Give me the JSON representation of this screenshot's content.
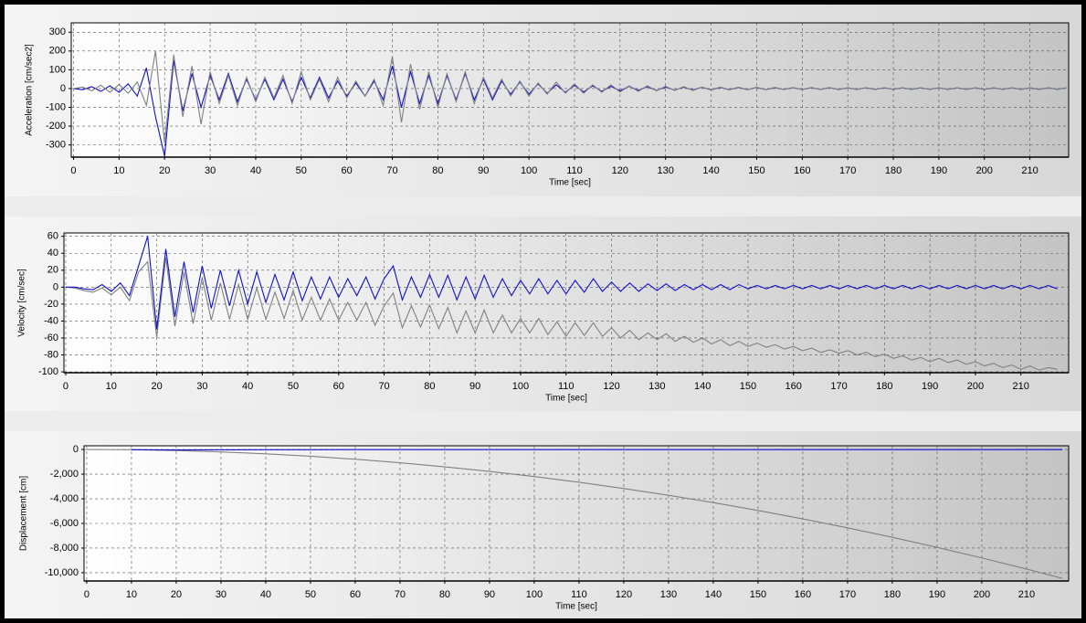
{
  "chart_data": [
    {
      "type": "line",
      "y_label": "Acceleration [cm/sec2]",
      "x_label": "Time [sec]",
      "grid": true,
      "xlim": [
        -0.5,
        218.5
      ],
      "ylim": [
        -365,
        350
      ],
      "xticks": [
        0,
        10,
        20,
        30,
        40,
        50,
        60,
        70,
        80,
        90,
        100,
        110,
        120,
        130,
        140,
        150,
        160,
        170,
        180,
        190,
        200,
        210
      ],
      "yticks": [
        300,
        200,
        100,
        0,
        -100,
        -200,
        -300
      ],
      "x": [
        0,
        2,
        4,
        6,
        8,
        10,
        12,
        14,
        16,
        18,
        20,
        22,
        24,
        26,
        28,
        30,
        32,
        34,
        36,
        38,
        40,
        42,
        44,
        46,
        48,
        50,
        52,
        54,
        56,
        58,
        60,
        62,
        64,
        66,
        68,
        70,
        72,
        74,
        76,
        78,
        80,
        82,
        84,
        86,
        88,
        90,
        92,
        94,
        96,
        98,
        100,
        102,
        104,
        106,
        108,
        110,
        112,
        114,
        116,
        118,
        120,
        122,
        124,
        126,
        128,
        130,
        132,
        134,
        136,
        138,
        140,
        142,
        144,
        146,
        148,
        150,
        152,
        154,
        156,
        158,
        160,
        162,
        164,
        166,
        168,
        170,
        172,
        174,
        176,
        178,
        180,
        182,
        184,
        186,
        188,
        190,
        192,
        194,
        196,
        198,
        200,
        202,
        204,
        206,
        208,
        210,
        212,
        214,
        216,
        218
      ],
      "series": [
        {
          "color": "#1010c8",
          "values": [
            0,
            -6,
            10,
            -15,
            15,
            -20,
            25,
            -40,
            110,
            -150,
            -360,
            150,
            -120,
            80,
            -100,
            70,
            -60,
            80,
            -70,
            50,
            -60,
            50,
            -60,
            50,
            -70,
            60,
            -50,
            60,
            -50,
            40,
            -40,
            30,
            -40,
            40,
            -60,
            120,
            -100,
            90,
            -80,
            70,
            -80,
            70,
            -60,
            80,
            -60,
            50,
            -60,
            40,
            -30,
            35,
            -30,
            25,
            -25,
            20,
            -20,
            18,
            -18,
            15,
            -15,
            12,
            -12,
            12,
            -10,
            10,
            -10,
            8,
            -8,
            7,
            -7,
            7,
            -7,
            6,
            -6,
            6,
            -6,
            6,
            -6,
            5,
            -5,
            5,
            -5,
            5,
            -5,
            5,
            -5,
            4,
            -4,
            4,
            -4,
            4,
            -4,
            4,
            -4,
            4,
            -4,
            4,
            -4,
            4,
            -4,
            4,
            -4,
            4,
            -4,
            4,
            -4,
            4,
            -4,
            4,
            -4,
            4
          ]
        },
        {
          "color": "#808080",
          "values": [
            0,
            8,
            -12,
            18,
            -20,
            22,
            -25,
            35,
            -90,
            200,
            -290,
            180,
            -150,
            120,
            -190,
            90,
            -80,
            70,
            -90,
            60,
            -70,
            60,
            -50,
            70,
            -80,
            90,
            -60,
            50,
            -70,
            60,
            -50,
            40,
            -40,
            50,
            -90,
            170,
            -180,
            130,
            -110,
            90,
            -100,
            80,
            -70,
            90,
            -80,
            60,
            -50,
            50,
            -40,
            40,
            -40,
            30,
            -30,
            35,
            -25,
            25,
            -25,
            20,
            -20,
            20,
            -18,
            15,
            -15,
            15,
            -12,
            12,
            -10,
            10,
            -10,
            8,
            -8,
            8,
            -7,
            7,
            -6,
            6,
            -6,
            6,
            -5,
            5,
            -5,
            5,
            -5,
            5,
            -4,
            4,
            -4,
            4,
            -4,
            4,
            -4,
            4,
            -3,
            3,
            -3,
            3,
            -3,
            3,
            -3,
            3,
            -3,
            3,
            -3,
            3,
            -3,
            3,
            -3,
            3,
            -3,
            3
          ]
        }
      ]
    },
    {
      "type": "line",
      "y_label": "Velocity [cm/sec]",
      "x_label": "Time [sec]",
      "grid": true,
      "xlim": [
        -0.4,
        220.5
      ],
      "ylim": [
        -101,
        64
      ],
      "xticks": [
        0,
        10,
        20,
        30,
        40,
        50,
        60,
        70,
        80,
        90,
        100,
        110,
        120,
        130,
        140,
        150,
        160,
        170,
        180,
        190,
        200,
        210
      ],
      "yticks": [
        60,
        40,
        20,
        0,
        -20,
        -40,
        -60,
        -80,
        -100
      ],
      "x": [
        0,
        2,
        4,
        6,
        8,
        10,
        12,
        14,
        16,
        18,
        20,
        22,
        24,
        26,
        28,
        30,
        32,
        34,
        36,
        38,
        40,
        42,
        44,
        46,
        48,
        50,
        52,
        54,
        56,
        58,
        60,
        62,
        64,
        66,
        68,
        70,
        72,
        74,
        76,
        78,
        80,
        82,
        84,
        86,
        88,
        90,
        92,
        94,
        96,
        98,
        100,
        102,
        104,
        106,
        108,
        110,
        112,
        114,
        116,
        118,
        120,
        122,
        124,
        126,
        128,
        130,
        132,
        134,
        136,
        138,
        140,
        142,
        144,
        146,
        148,
        150,
        152,
        154,
        156,
        158,
        160,
        162,
        164,
        166,
        168,
        170,
        172,
        174,
        176,
        178,
        180,
        182,
        184,
        186,
        188,
        190,
        192,
        194,
        196,
        198,
        200,
        202,
        204,
        206,
        208,
        210,
        212,
        214,
        216,
        218
      ],
      "series": [
        {
          "color": "#808080",
          "values": [
            0,
            -1,
            -4,
            -6,
            -1,
            -9,
            0,
            -16,
            18,
            30,
            -59,
            35,
            -46,
            18,
            -43,
            11,
            -39,
            5,
            -38,
            3,
            -38,
            -1,
            -38,
            -6,
            -37,
            -4,
            -39,
            -12,
            -39,
            -14,
            -39,
            -18,
            -39,
            -18,
            -45,
            -22,
            -7,
            -48,
            -22,
            -47,
            -21,
            -49,
            -24,
            -54,
            -28,
            -54,
            -27,
            -54,
            -33,
            -54,
            -37,
            -54,
            -37,
            -56,
            -41,
            -58,
            -42,
            -57,
            -42,
            -58,
            -48,
            -60,
            -51,
            -62,
            -54,
            -62,
            -55,
            -64,
            -58,
            -65,
            -60,
            -67,
            -62,
            -69,
            -64,
            -70,
            -66,
            -71,
            -68,
            -73,
            -70,
            -75,
            -72,
            -77,
            -74,
            -78,
            -75,
            -80,
            -77,
            -82,
            -79,
            -84,
            -81,
            -86,
            -83,
            -88,
            -84,
            -89,
            -86,
            -91,
            -88,
            -93,
            -90,
            -95,
            -92,
            -97,
            -93,
            -98,
            -95,
            -97
          ]
        },
        {
          "color": "#1010c8",
          "values": [
            0,
            0,
            -2,
            -3,
            3,
            -5,
            5,
            -10,
            25,
            60,
            -50,
            45,
            -35,
            30,
            -30,
            25,
            -25,
            20,
            -22,
            20,
            -20,
            18,
            -18,
            15,
            -15,
            18,
            -16,
            12,
            -14,
            12,
            -12,
            10,
            -10,
            12,
            -14,
            10,
            25,
            -15,
            12,
            -12,
            15,
            -12,
            14,
            -15,
            12,
            -14,
            14,
            -12,
            10,
            -10,
            8,
            -8,
            10,
            -8,
            8,
            -8,
            8,
            -6,
            10,
            -5,
            6,
            -5,
            5,
            -5,
            4,
            -4,
            4,
            -4,
            3,
            -3,
            3,
            -3,
            3,
            -3,
            3,
            -2,
            2,
            -2,
            2,
            -2,
            2,
            -2,
            2,
            -2,
            2,
            -2,
            2,
            -2,
            2,
            -2,
            2,
            -2,
            2,
            -2,
            2,
            -2,
            2,
            -2,
            2,
            -2,
            2,
            -2,
            2,
            -2,
            2,
            -2,
            2,
            -2,
            2,
            -2
          ]
        }
      ]
    },
    {
      "type": "line",
      "y_label": "Displacement [cm]",
      "x_label": "Time [sec]",
      "grid": true,
      "xlim": [
        -0.6,
        219.4
      ],
      "ylim": [
        -10670,
        300
      ],
      "xticks": [
        0,
        10,
        20,
        30,
        40,
        50,
        60,
        70,
        80,
        90,
        100,
        110,
        120,
        130,
        140,
        150,
        160,
        170,
        180,
        190,
        200,
        210
      ],
      "yticks": [
        0,
        {
          "value": -2000,
          "label": "-2,000"
        },
        {
          "value": -4000,
          "label": "-4,000"
        },
        {
          "value": -6000,
          "label": "-6,000"
        },
        {
          "value": -8000,
          "label": "-8,000"
        },
        {
          "value": -10000,
          "label": "-10,000"
        }
      ],
      "x": [
        0,
        10,
        20,
        30,
        40,
        50,
        60,
        70,
        80,
        90,
        100,
        110,
        120,
        130,
        140,
        150,
        160,
        170,
        180,
        190,
        200,
        210,
        218
      ],
      "series": [
        {
          "color": "#808080",
          "values": [
            0,
            -22,
            -88,
            -198,
            -352,
            -550,
            -792,
            -1078,
            -1408,
            -1782,
            -2200,
            -2662,
            -3168,
            -3718,
            -4312,
            -4950,
            -5632,
            -6358,
            -7128,
            -7942,
            -8800,
            -9702,
            -10455
          ]
        },
        {
          "color": "#1010c8",
          "values": [
            null,
            -20,
            -40,
            -30,
            -20,
            -20,
            -10,
            -10,
            -10,
            -10,
            -10,
            -10,
            -10,
            -10,
            -10,
            -10,
            -10,
            -10,
            -10,
            -10,
            -10,
            -10,
            -10
          ]
        }
      ]
    }
  ]
}
